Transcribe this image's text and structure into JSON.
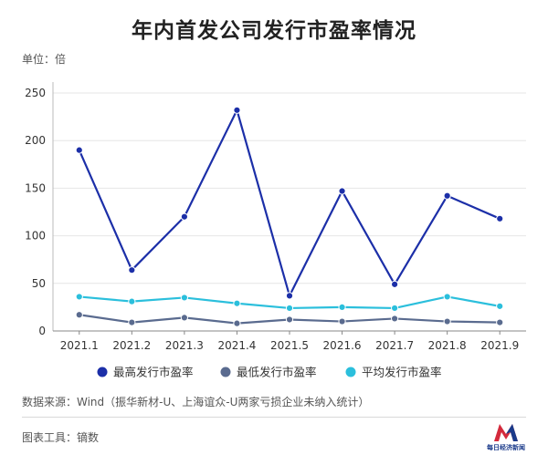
{
  "title": "年内首发公司发行市盈率情况",
  "unit_label": "单位：倍",
  "source_note": "数据来源：Wind（振华新材-U、上海谊众-U两家亏损企业未纳入统计）",
  "tool_note": "图表工具：镝数",
  "logo_text": "每日经济新闻",
  "chart_data": {
    "type": "line",
    "title": "年内首发公司发行市盈率情况",
    "ylabel": "单位：倍",
    "xlabel": "",
    "categories": [
      "2021.1",
      "2021.2",
      "2021.3",
      "2021.4",
      "2021.5",
      "2021.6",
      "2021.7",
      "2021.8",
      "2021.9"
    ],
    "ylim": [
      0,
      250
    ],
    "yticks": [
      0,
      50,
      100,
      150,
      200,
      250
    ],
    "grid": true,
    "legend": "bottom",
    "series": [
      {
        "name": "最高发行市盈率",
        "color": "#1c2fa8",
        "values": [
          190,
          64,
          120,
          232,
          37,
          147,
          49,
          142,
          118
        ]
      },
      {
        "name": "最低发行市盈率",
        "color": "#5a6b8f",
        "values": [
          17,
          9,
          14,
          8,
          12,
          10,
          13,
          10,
          9
        ]
      },
      {
        "name": "平均发行市盈率",
        "color": "#2bbfdc",
        "values": [
          36,
          31,
          35,
          29,
          24,
          25,
          24,
          36,
          26
        ]
      }
    ]
  }
}
